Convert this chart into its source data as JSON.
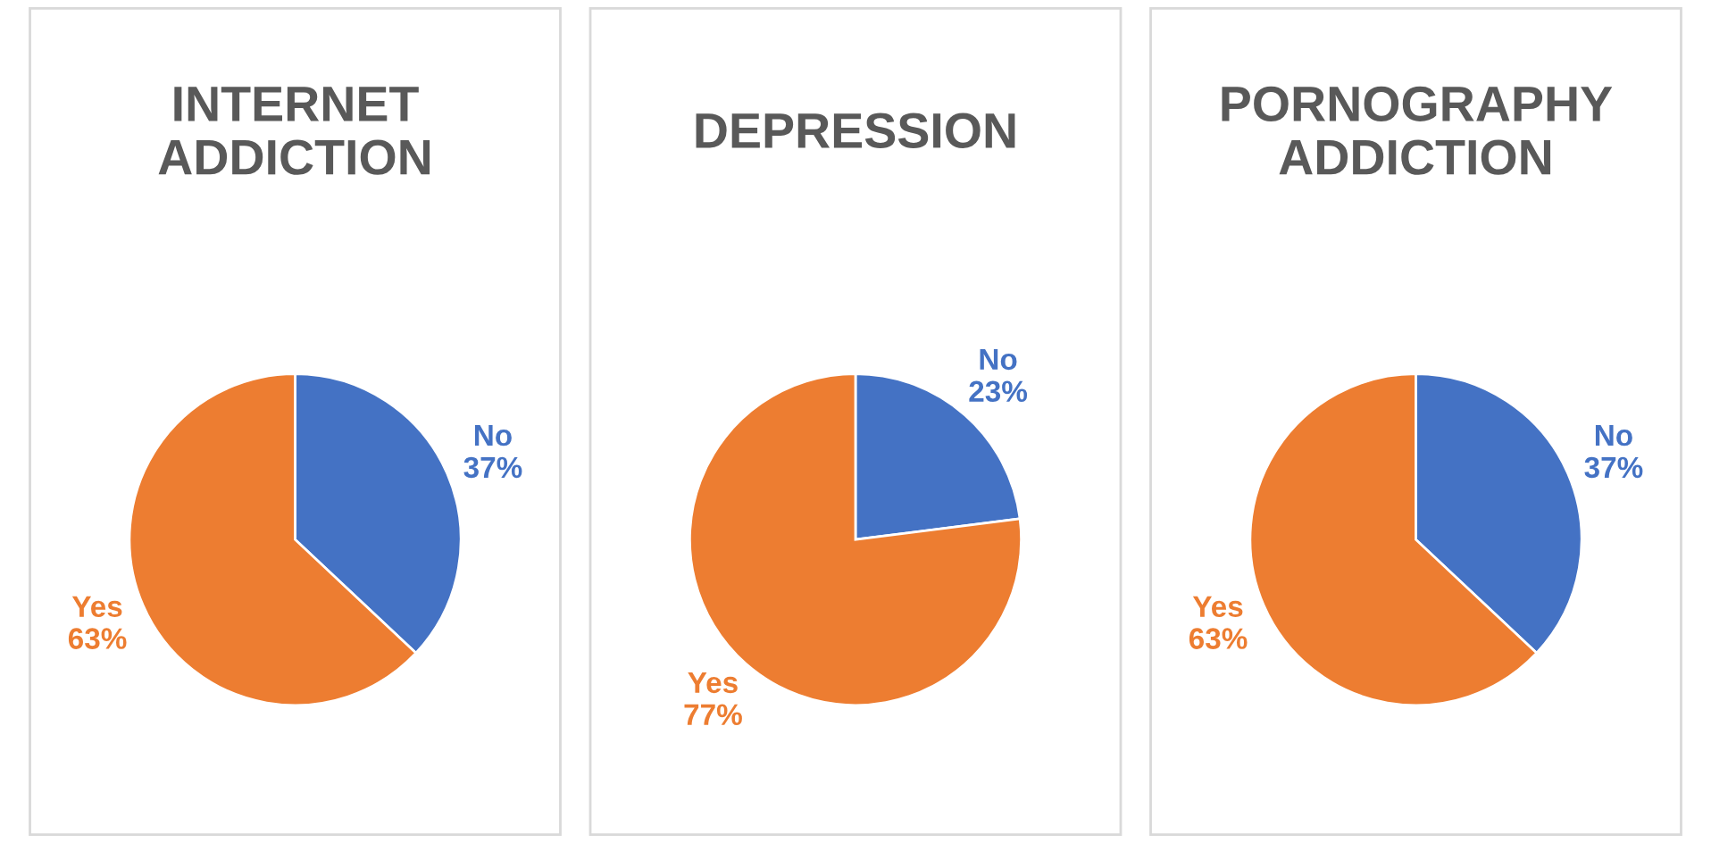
{
  "chart_data": [
    {
      "type": "pie",
      "title": "INTERNET\nADDICTION",
      "categories": [
        "No",
        "Yes"
      ],
      "values": [
        37,
        63
      ],
      "colors": [
        "#4472c4",
        "#ed7d31"
      ],
      "value_labels": [
        "37%",
        "63%"
      ]
    },
    {
      "type": "pie",
      "title": "DEPRESSION",
      "categories": [
        "No",
        "Yes"
      ],
      "values": [
        23,
        77
      ],
      "colors": [
        "#4472c4",
        "#ed7d31"
      ],
      "value_labels": [
        "23%",
        "77%"
      ]
    },
    {
      "type": "pie",
      "title": "PORNOGRAPHY\nADDICTION",
      "categories": [
        "No",
        "Yes"
      ],
      "values": [
        37,
        63
      ],
      "colors": [
        "#4472c4",
        "#ed7d31"
      ],
      "value_labels": [
        "37%",
        "63%"
      ]
    }
  ]
}
